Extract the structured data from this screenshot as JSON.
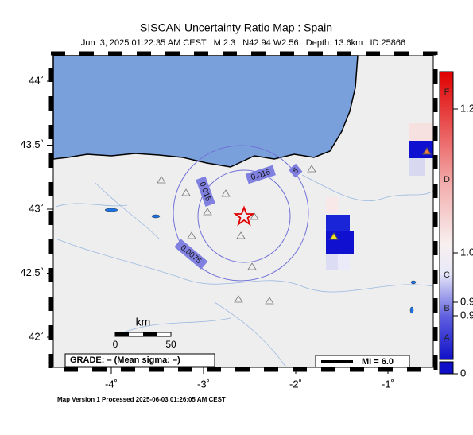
{
  "map": {
    "title": "SISCAN Uncertainty Ratio Map : Spain",
    "subtitle": "Jun  3, 2025 01:22:35 AM CEST   M 2.3   N42.94 W2.56   Depth: 13.6km   ID:25866",
    "xticks": [
      {
        "value": -4,
        "label": "-4˚"
      },
      {
        "value": -3,
        "label": "-3˚"
      },
      {
        "value": -2,
        "label": "-2˚"
      },
      {
        "value": -1,
        "label": "-1˚"
      }
    ],
    "yticks": [
      {
        "value": 44,
        "label": "44˚"
      },
      {
        "value": 43.5,
        "label": "43.5˚"
      },
      {
        "value": 43,
        "label": "43˚"
      },
      {
        "value": 42.5,
        "label": "42.5˚"
      },
      {
        "value": 42,
        "label": "42˚"
      }
    ],
    "contour_labels": [
      "0.015",
      "0.015",
      "0.0075",
      "5"
    ],
    "scale": {
      "unit": "km",
      "labels": [
        "0",
        "50"
      ]
    },
    "grade": "GRADE: – (Mean sigma: –)",
    "mi": "MI = 6.0",
    "colorbar": {
      "grades": [
        "F",
        "D",
        "C",
        "B",
        "A"
      ],
      "labels": [
        "1.2",
        "1.0",
        "0.9",
        "0.9",
        "0"
      ]
    },
    "footer": "Map Version 1 Processed 2025-06-03 01:26:05 AM CEST"
  }
}
